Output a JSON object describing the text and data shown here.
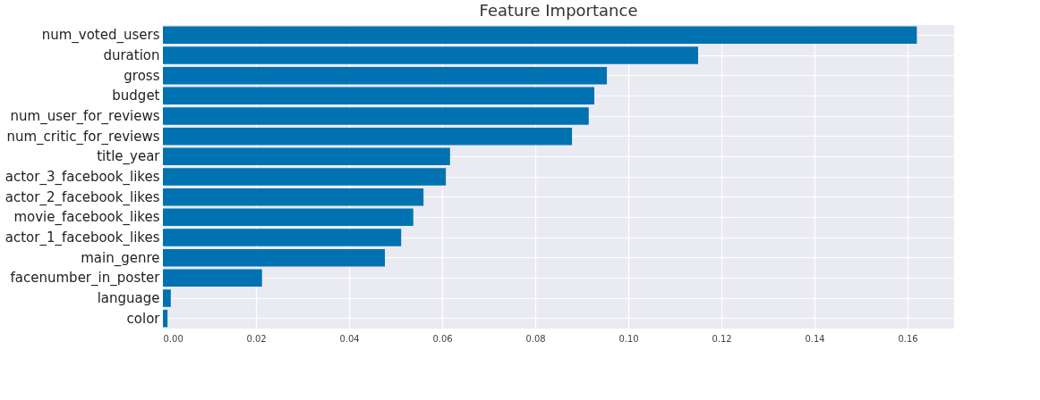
{
  "chart_data": {
    "type": "bar",
    "orientation": "horizontal",
    "title": "Feature Importance",
    "categories": [
      "num_voted_users",
      "duration",
      "gross",
      "budget",
      "num_user_for_reviews",
      "num_critic_for_reviews",
      "title_year",
      "actor_3_facebook_likes",
      "actor_2_facebook_likes",
      "movie_facebook_likes",
      "actor_1_facebook_likes",
      "main_genre",
      "facenumber_in_poster",
      "language",
      "color"
    ],
    "values": [
      0.162,
      0.115,
      0.0954,
      0.0927,
      0.0915,
      0.0879,
      0.0617,
      0.0608,
      0.056,
      0.0538,
      0.0512,
      0.0477,
      0.0213,
      0.0017,
      0.001
    ],
    "color": "#0072b2",
    "xlim": [
      0,
      0.17
    ],
    "xticks": [
      {
        "value": 0,
        "label": "0.00"
      },
      {
        "value": 0.02,
        "label": "0.02"
      },
      {
        "value": 0.04,
        "label": "0.04"
      },
      {
        "value": 0.06,
        "label": "0.06"
      },
      {
        "value": 0.08,
        "label": "0.08"
      },
      {
        "value": 0.1,
        "label": "0.10"
      },
      {
        "value": 0.12,
        "label": "0.12"
      },
      {
        "value": 0.14,
        "label": "0.14"
      },
      {
        "value": 0.16,
        "label": "0.16"
      }
    ],
    "grid": true
  }
}
